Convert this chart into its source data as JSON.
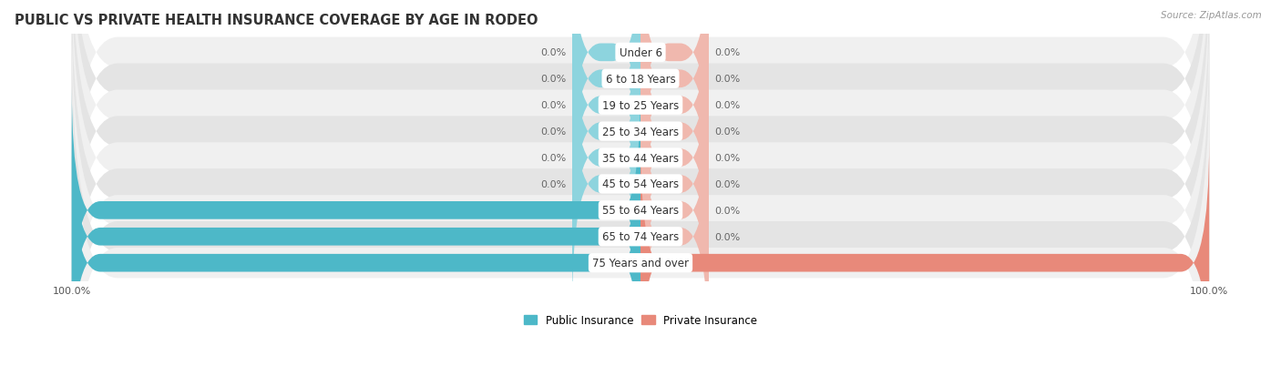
{
  "title": "PUBLIC VS PRIVATE HEALTH INSURANCE COVERAGE BY AGE IN RODEO",
  "source": "Source: ZipAtlas.com",
  "categories": [
    "Under 6",
    "6 to 18 Years",
    "19 to 25 Years",
    "25 to 34 Years",
    "35 to 44 Years",
    "45 to 54 Years",
    "55 to 64 Years",
    "65 to 74 Years",
    "75 Years and over"
  ],
  "public_values": [
    0.0,
    0.0,
    0.0,
    0.0,
    0.0,
    0.0,
    100.0,
    100.0,
    100.0
  ],
  "private_values": [
    0.0,
    0.0,
    0.0,
    0.0,
    0.0,
    0.0,
    0.0,
    0.0,
    100.0
  ],
  "public_color": "#4db8c8",
  "private_color": "#e8897a",
  "public_stub_color": "#8dd4de",
  "private_stub_color": "#f0b8ae",
  "row_bg_even": "#f0f0f0",
  "row_bg_odd": "#e4e4e4",
  "title_fontsize": 10.5,
  "label_fontsize": 8.5,
  "value_fontsize": 8,
  "tick_fontsize": 8,
  "legend_fontsize": 8.5,
  "stub_size": 12,
  "max_val": 100
}
